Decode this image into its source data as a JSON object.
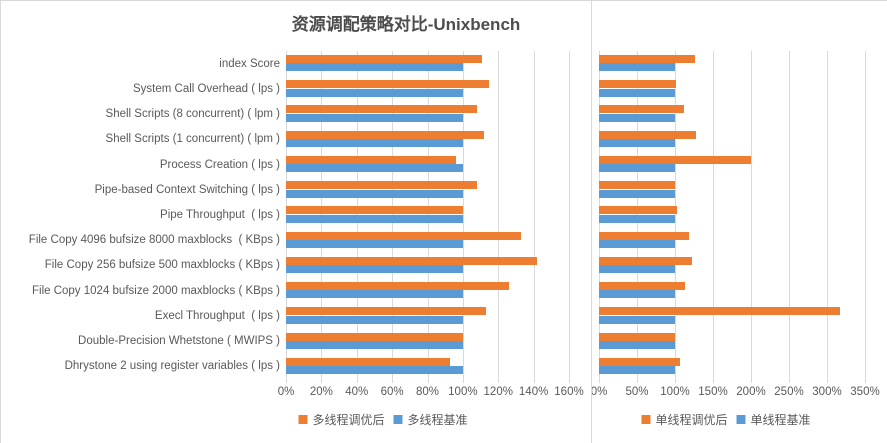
{
  "title": "资源调配策略对比-Unixbench",
  "chart_data": {
    "type": "bar",
    "orientation": "horizontal",
    "title": "资源调配策略对比-Unixbench",
    "grid": true,
    "legend_position": "bottom",
    "value_unit": "percent",
    "colors": {
      "tuned": "#ED7D31",
      "baseline": "#5B9BD5",
      "gridline": "#D9D9D9",
      "text": "#595959",
      "border": "#D9D9D9"
    },
    "categories": [
      "index Score",
      "System Call Overhead ( lps )",
      "Shell Scripts (8 concurrent) ( lpm )",
      "Shell Scripts (1 concurrent) ( lpm )",
      "Process Creation ( lps )",
      "Pipe-based Context Switching ( lps )",
      "Pipe Throughput  ( lps )",
      "File Copy 4096 bufsize 8000 maxblocks  ( KBps )",
      "File Copy 256 bufsize 500 maxblocks ( KBps )",
      "File Copy 1024 bufsize 2000 maxblocks ( KBps )",
      "Execl Throughput  ( lps )",
      "Double-Precision Whetstone ( MWIPS )",
      "Dhrystone 2 using register variables ( lps )"
    ],
    "charts": [
      {
        "id": "multi-thread",
        "xlim": [
          0,
          160
        ],
        "tick_labels": [
          "0%",
          "20%",
          "40%",
          "60%",
          "80%",
          "100%",
          "120%",
          "140%",
          "160%"
        ],
        "series": [
          {
            "name": "多线程调优后",
            "color": "#ED7D31",
            "values": [
              111,
              115,
              108,
              112,
              96,
              108,
              100,
              133,
              142,
              126,
              113,
              100,
              93
            ]
          },
          {
            "name": "多线程基准",
            "color": "#5B9BD5",
            "values": [
              100,
              100,
              100,
              100,
              100,
              100,
              100,
              100,
              100,
              100,
              100,
              100,
              100
            ]
          }
        ]
      },
      {
        "id": "single-thread",
        "xlim": [
          0,
          350
        ],
        "tick_labels": [
          "0%",
          "50%",
          "100%",
          "150%",
          "200%",
          "250%",
          "300%",
          "350%"
        ],
        "series": [
          {
            "name": "单线程调优后",
            "color": "#ED7D31",
            "values": [
              126,
              101,
              112,
              128,
              200,
              100,
              102,
              118,
              122,
              113,
              317,
              100,
              107
            ]
          },
          {
            "name": "单线程基准",
            "color": "#5B9BD5",
            "values": [
              100,
              100,
              100,
              100,
              100,
              100,
              100,
              100,
              100,
              100,
              100,
              100,
              100
            ]
          }
        ]
      }
    ]
  }
}
